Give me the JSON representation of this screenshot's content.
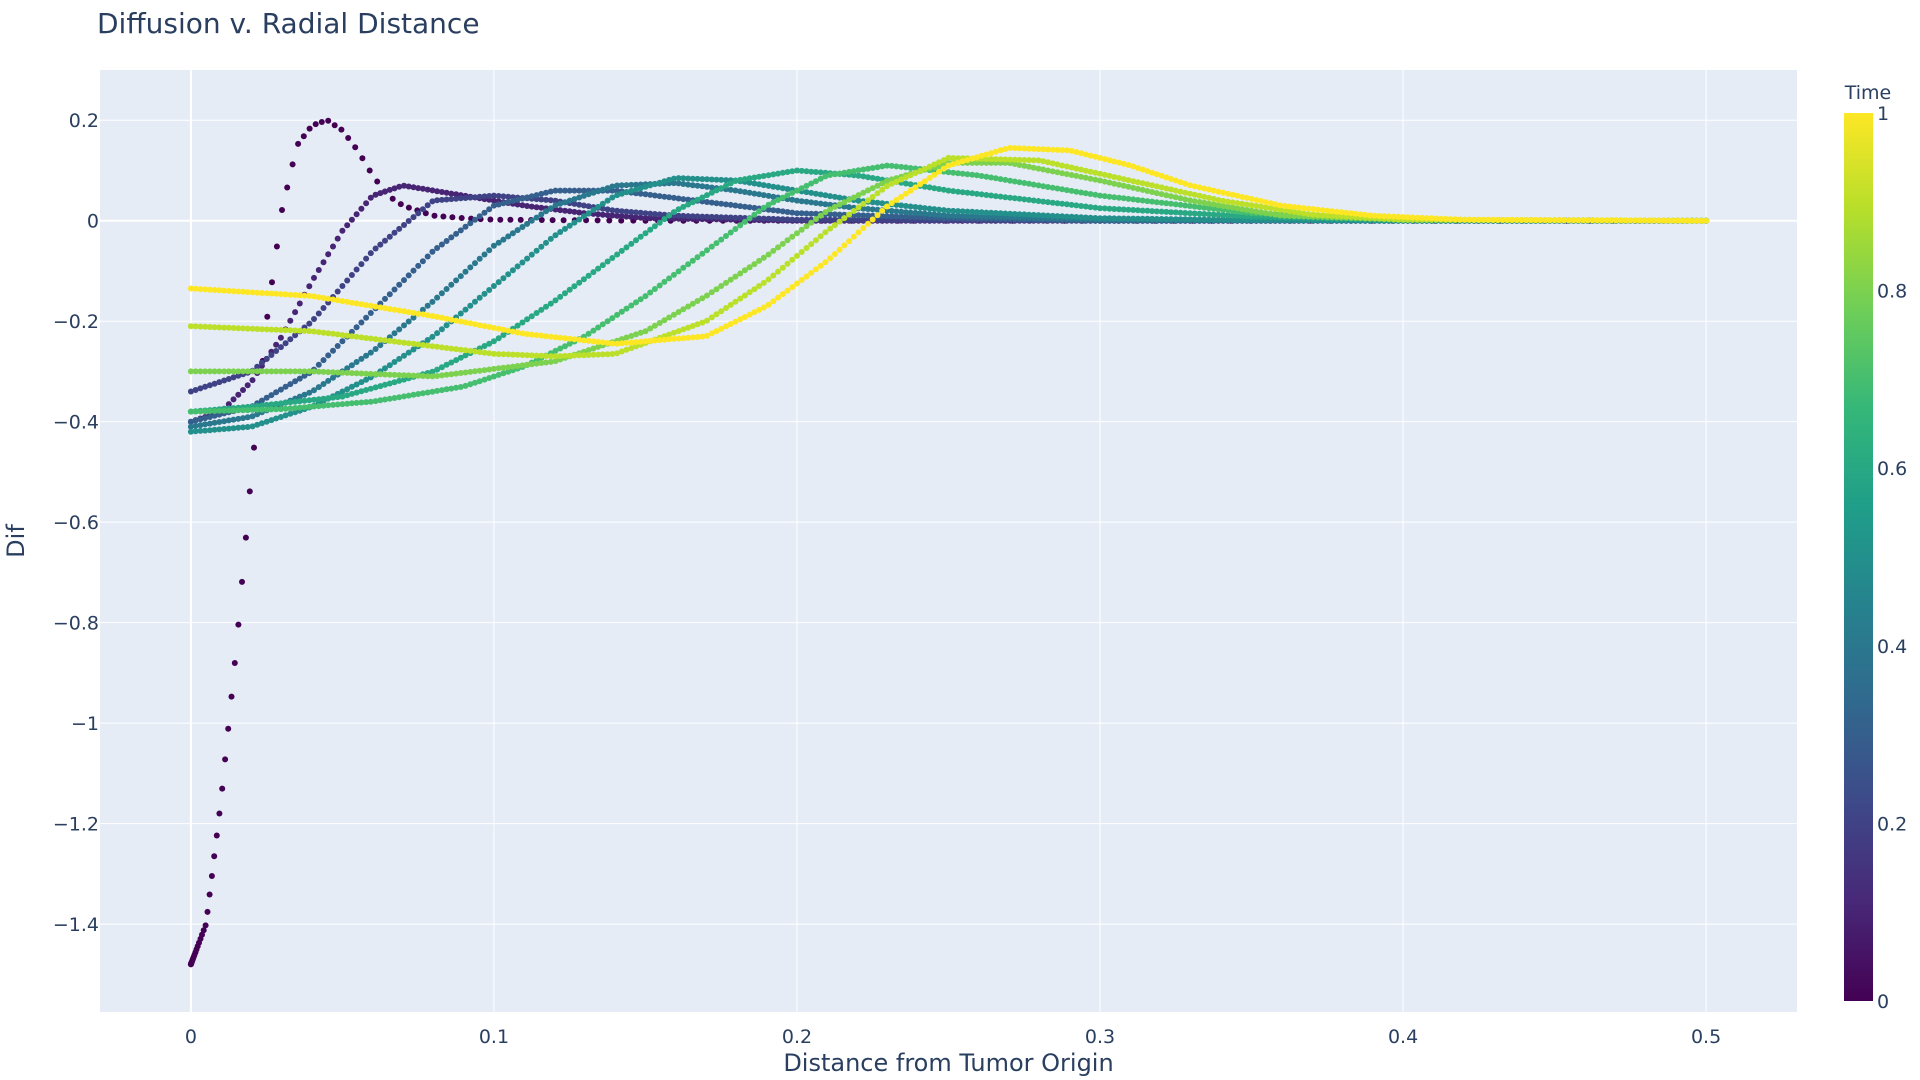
{
  "chart_data": {
    "type": "scatter",
    "title": "Diffusion v. Radial Distance",
    "xlabel": "Distance from Tumor Origin",
    "ylabel": "Dif",
    "xlim": [
      -0.03,
      0.53
    ],
    "ylim": [
      -1.575,
      0.3
    ],
    "x_ticks": [
      0,
      0.1,
      0.2,
      0.3,
      0.4,
      0.5
    ],
    "x_tick_labels": [
      "0",
      "0.1",
      "0.2",
      "0.3",
      "0.4",
      "0.5"
    ],
    "y_ticks": [
      0.2,
      0,
      -0.2,
      -0.4,
      -0.6,
      -0.8,
      -1,
      -1.2,
      -1.4
    ],
    "y_tick_labels": [
      "0.2",
      "0",
      "−0.2",
      "−0.4",
      "−0.6",
      "−0.8",
      "−1",
      "−1.2",
      "−1.4"
    ],
    "grid": true,
    "plot_background": "#e5ecf6",
    "colorbar": {
      "title": "Time",
      "range": [
        0,
        1
      ],
      "ticks": [
        0,
        0.2,
        0.4,
        0.6,
        0.8,
        1
      ],
      "tick_labels": [
        "0",
        "0.2",
        "0.4",
        "0.6",
        "0.8",
        "1"
      ],
      "colorscale": [
        "#440154",
        "#482878",
        "#3e4989",
        "#31688e",
        "#26828e",
        "#1f9e89",
        "#35b779",
        "#6ece58",
        "#b5de2b",
        "#fde725"
      ]
    },
    "series": [
      {
        "time": 0.0,
        "x": [
          0.0,
          0.005,
          0.01,
          0.015,
          0.02,
          0.025,
          0.03,
          0.035,
          0.04,
          0.045,
          0.05,
          0.055,
          0.06,
          0.065,
          0.07,
          0.08,
          0.09,
          0.1,
          0.15,
          0.2,
          0.3,
          0.4,
          0.5
        ],
        "y": [
          -1.48,
          -1.4,
          -1.15,
          -0.85,
          -0.5,
          -0.2,
          0.02,
          0.15,
          0.19,
          0.2,
          0.18,
          0.14,
          0.09,
          0.05,
          0.03,
          0.01,
          0.005,
          0.002,
          0.0,
          0.0,
          0.0,
          0.0,
          0.0
        ]
      },
      {
        "time": 0.1,
        "x": [
          0.0,
          0.01,
          0.02,
          0.03,
          0.04,
          0.05,
          0.06,
          0.07,
          0.08,
          0.09,
          0.1,
          0.11,
          0.13,
          0.15,
          0.2,
          0.3,
          0.4,
          0.5
        ],
        "y": [
          -0.4,
          -0.38,
          -0.32,
          -0.23,
          -0.12,
          -0.02,
          0.05,
          0.07,
          0.06,
          0.05,
          0.04,
          0.03,
          0.015,
          0.005,
          0.0,
          0.0,
          0.0,
          0.0
        ]
      },
      {
        "time": 0.2,
        "x": [
          0.0,
          0.02,
          0.04,
          0.06,
          0.08,
          0.1,
          0.12,
          0.14,
          0.16,
          0.2,
          0.3,
          0.4,
          0.5
        ],
        "y": [
          -0.34,
          -0.3,
          -0.2,
          -0.06,
          0.04,
          0.05,
          0.04,
          0.02,
          0.01,
          0.002,
          0.0,
          0.0,
          0.0
        ]
      },
      {
        "time": 0.3,
        "x": [
          0.0,
          0.02,
          0.04,
          0.06,
          0.08,
          0.1,
          0.12,
          0.14,
          0.16,
          0.18,
          0.2,
          0.25,
          0.3,
          0.4,
          0.5
        ],
        "y": [
          -0.4,
          -0.37,
          -0.3,
          -0.18,
          -0.06,
          0.03,
          0.06,
          0.06,
          0.045,
          0.03,
          0.015,
          0.005,
          0.0,
          0.0,
          0.0
        ]
      },
      {
        "time": 0.4,
        "x": [
          0.0,
          0.02,
          0.04,
          0.06,
          0.08,
          0.1,
          0.12,
          0.14,
          0.16,
          0.18,
          0.2,
          0.22,
          0.25,
          0.3,
          0.4,
          0.5
        ],
        "y": [
          -0.41,
          -0.39,
          -0.34,
          -0.26,
          -0.16,
          -0.05,
          0.03,
          0.07,
          0.075,
          0.06,
          0.04,
          0.025,
          0.01,
          0.002,
          0.0,
          0.0
        ]
      },
      {
        "time": 0.5,
        "x": [
          0.0,
          0.02,
          0.04,
          0.06,
          0.08,
          0.1,
          0.12,
          0.14,
          0.16,
          0.18,
          0.2,
          0.22,
          0.25,
          0.3,
          0.35,
          0.4,
          0.5
        ],
        "y": [
          -0.42,
          -0.41,
          -0.37,
          -0.31,
          -0.23,
          -0.13,
          -0.03,
          0.05,
          0.085,
          0.08,
          0.06,
          0.04,
          0.02,
          0.005,
          0.001,
          0.0,
          0.0
        ]
      },
      {
        "time": 0.6,
        "x": [
          0.0,
          0.02,
          0.05,
          0.08,
          0.1,
          0.12,
          0.14,
          0.16,
          0.18,
          0.2,
          0.22,
          0.25,
          0.3,
          0.35,
          0.4,
          0.5
        ],
        "y": [
          -0.38,
          -0.37,
          -0.35,
          -0.3,
          -0.24,
          -0.16,
          -0.07,
          0.02,
          0.08,
          0.1,
          0.09,
          0.06,
          0.025,
          0.008,
          0.001,
          0.0
        ]
      },
      {
        "time": 0.7,
        "x": [
          0.0,
          0.03,
          0.06,
          0.09,
          0.11,
          0.13,
          0.15,
          0.17,
          0.19,
          0.21,
          0.23,
          0.26,
          0.3,
          0.35,
          0.4,
          0.5
        ],
        "y": [
          -0.38,
          -0.375,
          -0.36,
          -0.33,
          -0.29,
          -0.23,
          -0.15,
          -0.06,
          0.03,
          0.09,
          0.11,
          0.09,
          0.05,
          0.015,
          0.002,
          0.0
        ]
      },
      {
        "time": 0.8,
        "x": [
          0.0,
          0.04,
          0.08,
          0.12,
          0.15,
          0.17,
          0.19,
          0.21,
          0.23,
          0.25,
          0.27,
          0.3,
          0.33,
          0.36,
          0.4,
          0.5
        ],
        "y": [
          -0.3,
          -0.3,
          -0.31,
          -0.28,
          -0.22,
          -0.15,
          -0.07,
          0.02,
          0.08,
          0.115,
          0.115,
          0.08,
          0.04,
          0.01,
          0.002,
          0.0
        ]
      },
      {
        "time": 0.9,
        "x": [
          0.0,
          0.04,
          0.08,
          0.1,
          0.12,
          0.14,
          0.17,
          0.19,
          0.21,
          0.23,
          0.25,
          0.28,
          0.31,
          0.34,
          0.37,
          0.4,
          0.5
        ],
        "y": [
          -0.21,
          -0.22,
          -0.25,
          -0.265,
          -0.27,
          -0.265,
          -0.2,
          -0.12,
          -0.02,
          0.07,
          0.125,
          0.12,
          0.08,
          0.04,
          0.012,
          0.002,
          0.0
        ]
      },
      {
        "time": 1.0,
        "x": [
          0.0,
          0.04,
          0.08,
          0.11,
          0.14,
          0.17,
          0.19,
          0.21,
          0.23,
          0.25,
          0.27,
          0.29,
          0.31,
          0.33,
          0.36,
          0.39,
          0.42,
          0.5
        ],
        "y": [
          -0.135,
          -0.15,
          -0.19,
          -0.225,
          -0.245,
          -0.23,
          -0.17,
          -0.08,
          0.03,
          0.11,
          0.145,
          0.14,
          0.11,
          0.07,
          0.03,
          0.01,
          0.002,
          0.0
        ]
      }
    ]
  }
}
